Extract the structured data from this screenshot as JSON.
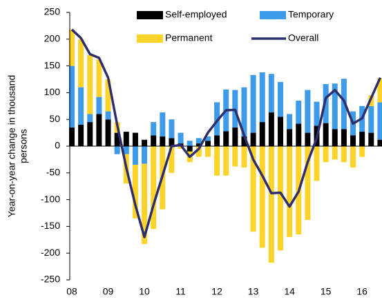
{
  "chart_data": {
    "type": "stacked_bar_line",
    "y_label": [
      "Year-on-year change in thousand",
      "persons"
    ],
    "categories": [
      "08",
      null,
      null,
      null,
      "09",
      null,
      null,
      null,
      "10",
      null,
      null,
      null,
      "11",
      null,
      null,
      null,
      "12",
      null,
      null,
      null,
      "13",
      null,
      null,
      null,
      "14",
      null,
      null,
      null,
      "15",
      null,
      null,
      null,
      "16",
      null,
      null
    ],
    "series": [
      {
        "name": "Self-employed",
        "color": "#000000",
        "kind": "bar",
        "values": [
          35,
          40,
          45,
          60,
          50,
          25,
          27,
          25,
          12,
          20,
          18,
          15,
          5,
          -10,
          5,
          10,
          20,
          28,
          35,
          18,
          25,
          45,
          63,
          55,
          32,
          42,
          25,
          38,
          43,
          32,
          32,
          20,
          27,
          25,
          12
        ]
      },
      {
        "name": "Temporary",
        "color": "#3d9be9",
        "kind": "bar",
        "values": [
          115,
          70,
          15,
          32,
          15,
          -15,
          -15,
          -35,
          -33,
          25,
          45,
          35,
          20,
          10,
          10,
          8,
          62,
          78,
          70,
          92,
          108,
          93,
          72,
          65,
          28,
          43,
          80,
          45,
          73,
          85,
          94,
          45,
          48,
          50,
          70
        ]
      },
      {
        "name": "Permanent",
        "color": "#ffd42a",
        "kind": "bar",
        "values": [
          68,
          90,
          110,
          70,
          60,
          20,
          -55,
          -100,
          -150,
          -155,
          -118,
          -50,
          -5,
          -20,
          -20,
          -20,
          -55,
          -55,
          -38,
          -40,
          -160,
          -190,
          -218,
          -195,
          -170,
          -165,
          -138,
          -65,
          -30,
          -25,
          -30,
          -40,
          -20,
          20,
          45
        ]
      },
      {
        "name": "Overall",
        "color": "#2e2e6e",
        "kind": "line",
        "values": [
          218,
          202,
          172,
          165,
          128,
          40,
          -40,
          -110,
          -170,
          -110,
          -55,
          0,
          2,
          -20,
          -5,
          25,
          47,
          67,
          68,
          20,
          -25,
          -55,
          -88,
          -87,
          -113,
          -85,
          -30,
          15,
          90,
          105,
          85,
          42,
          52,
          90,
          128
        ]
      }
    ],
    "ylim": [
      -250,
      250
    ],
    "yticks": [
      -250,
      -200,
      -150,
      -100,
      -50,
      0,
      50,
      100,
      150,
      200,
      250
    ]
  }
}
